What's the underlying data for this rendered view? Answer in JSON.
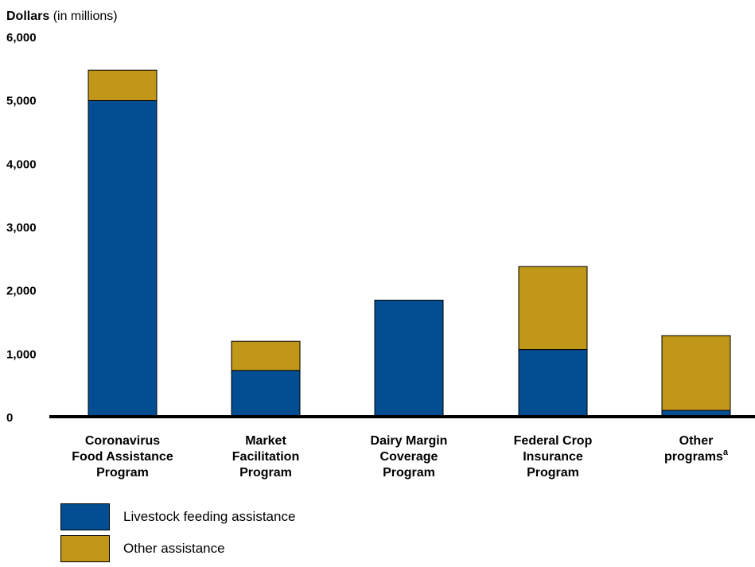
{
  "chart_data": {
    "type": "bar",
    "stacked": true,
    "ylabel_bold": "Dollars",
    "ylabel_rest": " (in millions)",
    "ylim": [
      0,
      6000
    ],
    "yticks": [
      "0",
      "1,000",
      "2,000",
      "3,000",
      "4,000",
      "5,000",
      "6,000"
    ],
    "ytick_values": [
      0,
      1000,
      2000,
      3000,
      4000,
      5000,
      6000
    ],
    "categories": [
      [
        "Coronavirus",
        "Food Assistance",
        "Program"
      ],
      [
        "Market",
        "Facilitation",
        "Program"
      ],
      [
        "Dairy Margin",
        "Coverage",
        "Program"
      ],
      [
        "Federal Crop",
        "Insurance",
        "Program"
      ],
      [
        "Other",
        "programs"
      ]
    ],
    "category_footnote": [
      "",
      "",
      "",
      "",
      "a"
    ],
    "series": [
      {
        "name": "Livestock feeding assistance",
        "color": "#034e93",
        "values": [
          4990,
          730,
          1840,
          1060,
          100
        ]
      },
      {
        "name": "Other assistance",
        "color": "#c09718",
        "values": [
          480,
          460,
          0,
          1310,
          1180
        ]
      }
    ],
    "grid": false,
    "legend_position": "bottom-left"
  }
}
